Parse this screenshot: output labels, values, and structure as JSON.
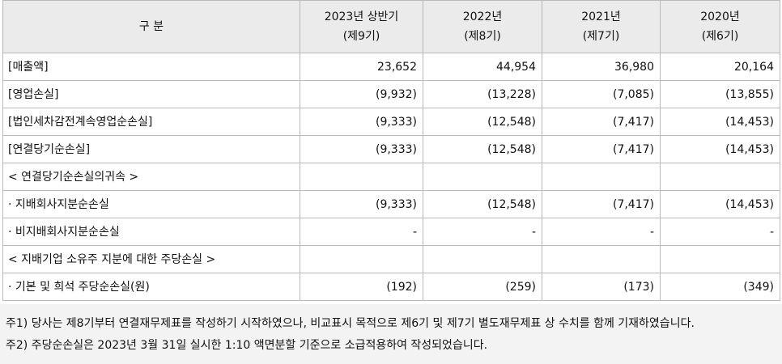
{
  "table": {
    "header": {
      "label": "구 분",
      "periods": [
        {
          "year": "2023년 상반기",
          "term": "(제9기)"
        },
        {
          "year": "2022년",
          "term": "(제8기)"
        },
        {
          "year": "2021년",
          "term": "(제7기)"
        },
        {
          "year": "2020년",
          "term": "(제6기)"
        }
      ]
    },
    "rows": [
      {
        "label": "[매출액]",
        "values": [
          "23,652",
          "44,954",
          "36,980",
          "20,164"
        ]
      },
      {
        "label": "[영업손실]",
        "values": [
          "(9,932)",
          "(13,228)",
          "(7,085)",
          "(13,855)"
        ]
      },
      {
        "label": "[법인세차감전계속영업순손실]",
        "values": [
          "(9,333)",
          "(12,548)",
          "(7,417)",
          "(14,453)"
        ]
      },
      {
        "label": "[연결당기순손실]",
        "values": [
          "(9,333)",
          "(12,548)",
          "(7,417)",
          "(14,453)"
        ]
      },
      {
        "label": "< 연결당기순손실의귀속 >",
        "values": [
          "",
          "",
          "",
          ""
        ]
      },
      {
        "label": "· 지배회사지분순손실",
        "values": [
          "(9,333)",
          "(12,548)",
          "(7,417)",
          "(14,453)"
        ]
      },
      {
        "label": "· 비지배회사지분순손실",
        "values": [
          "-",
          "-",
          "-",
          "-"
        ]
      },
      {
        "label": "< 지배기업 소유주 지분에 대한 주당손실 >",
        "values": [
          "",
          "",
          "",
          ""
        ]
      },
      {
        "label": "· 기본 및 희석 주당순손실(원)",
        "values": [
          "(192)",
          "(259)",
          "(173)",
          "(349)"
        ]
      }
    ]
  },
  "notes": [
    "주1) 당사는 제8기부터 연결재무제표를 작성하기 시작하였으나, 비교표시 목적으로 제6기 및 제7기 별도재무제표 상 수치를 함께 기재하였습니다.",
    "주2) 주당순손실은 2023년 3월 31일 실시한 1:10 액면분할 기준으로 소급적용하여 작성되었습니다."
  ]
}
